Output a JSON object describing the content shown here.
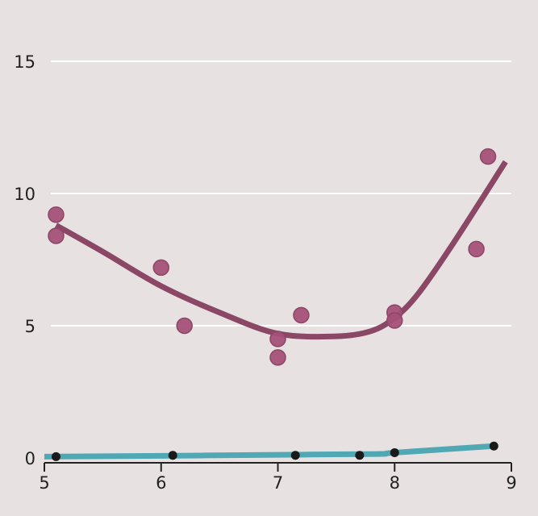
{
  "colors": {
    "background": "#e8e1e1",
    "gridline": "#ffffff",
    "axis": "#222222",
    "series_a_line": "#8b4766",
    "series_a_point": "#a55078",
    "series_b_line": "#4fa8b3",
    "series_b_point": "#1a1a1a"
  },
  "chart_data": {
    "type": "scatter",
    "title": "",
    "xlabel": "",
    "ylabel": "",
    "xlim": [
      5,
      9
    ],
    "ylim": [
      0,
      17
    ],
    "x_ticks": [
      5,
      6,
      7,
      8,
      9
    ],
    "y_ticks": [
      0,
      5,
      10,
      15
    ],
    "x_tick_labels": [
      "5",
      "6",
      "7",
      "8",
      "9"
    ],
    "y_tick_labels": [
      "0",
      "5",
      "10",
      "15"
    ],
    "grid": "horizontal",
    "legend": "none",
    "series": [
      {
        "points": [
          {
            "x": 5.1,
            "y": 9.2
          },
          {
            "x": 5.1,
            "y": 8.4
          },
          {
            "x": 6.0,
            "y": 7.2
          },
          {
            "x": 6.2,
            "y": 5.0
          },
          {
            "x": 7.0,
            "y": 4.5
          },
          {
            "x": 7.0,
            "y": 3.8
          },
          {
            "x": 7.2,
            "y": 5.4
          },
          {
            "x": 8.0,
            "y": 5.5
          },
          {
            "x": 8.0,
            "y": 5.2
          },
          {
            "x": 8.7,
            "y": 7.9
          },
          {
            "x": 8.8,
            "y": 11.4
          }
        ],
        "trend": [
          {
            "x": 5.1,
            "y": 8.8
          },
          {
            "x": 5.5,
            "y": 7.8
          },
          {
            "x": 6.0,
            "y": 6.5
          },
          {
            "x": 6.5,
            "y": 5.5
          },
          {
            "x": 7.0,
            "y": 4.7
          },
          {
            "x": 7.5,
            "y": 4.6
          },
          {
            "x": 7.8,
            "y": 4.8
          },
          {
            "x": 8.0,
            "y": 5.3
          },
          {
            "x": 8.2,
            "y": 6.2
          },
          {
            "x": 8.5,
            "y": 8.1
          },
          {
            "x": 8.95,
            "y": 11.2
          }
        ]
      },
      {
        "points": [
          {
            "x": 5.1,
            "y": 0.05
          },
          {
            "x": 6.1,
            "y": 0.1
          },
          {
            "x": 7.15,
            "y": 0.1
          },
          {
            "x": 7.7,
            "y": 0.1
          },
          {
            "x": 8.0,
            "y": 0.2
          },
          {
            "x": 8.85,
            "y": 0.45
          }
        ],
        "trend": [
          {
            "x": 5.0,
            "y": 0.05
          },
          {
            "x": 6.0,
            "y": 0.08
          },
          {
            "x": 7.0,
            "y": 0.12
          },
          {
            "x": 7.85,
            "y": 0.15
          },
          {
            "x": 8.0,
            "y": 0.2
          },
          {
            "x": 8.85,
            "y": 0.45
          }
        ]
      }
    ]
  }
}
